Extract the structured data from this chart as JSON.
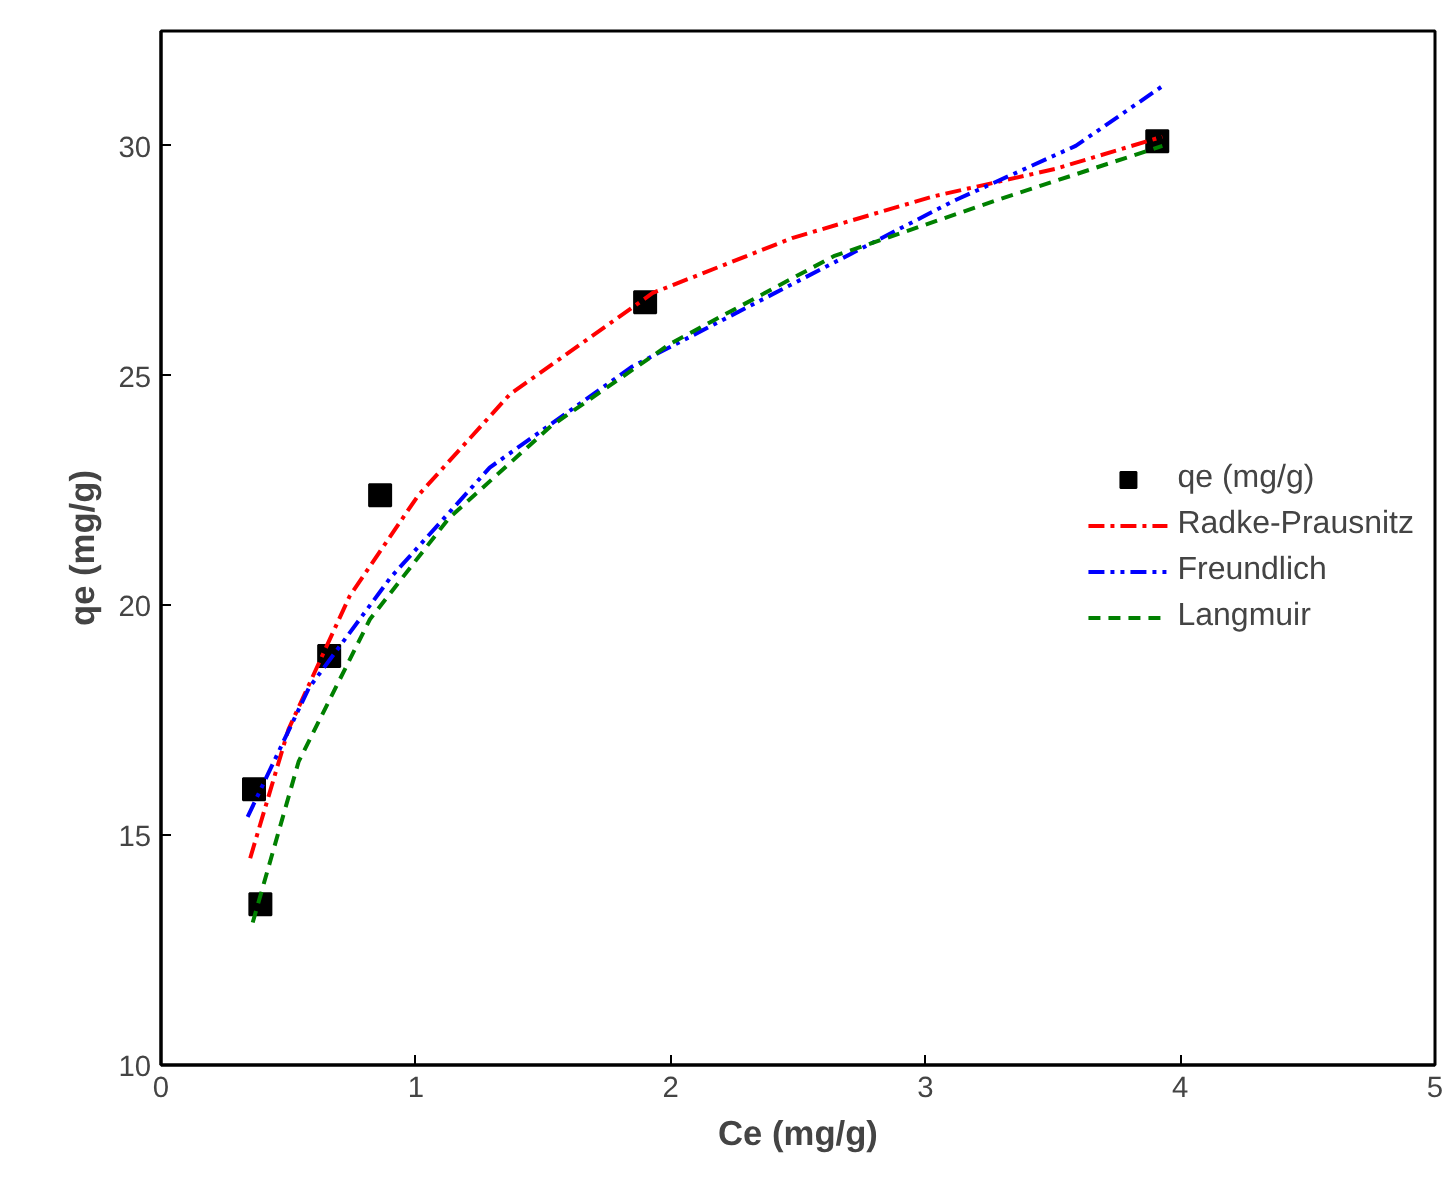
{
  "chart_data": {
    "type": "scatter",
    "xlabel": "Ce (mg/g)",
    "ylabel": "qe (mg/g)",
    "xlim": [
      0,
      5
    ],
    "ylim": [
      10,
      32.5
    ],
    "xticks": [
      0,
      1,
      2,
      3,
      4,
      5
    ],
    "yticks": [
      10,
      15,
      20,
      25,
      30
    ],
    "grid": false,
    "legend": "right",
    "series": [
      {
        "name": "qe (mg/g)",
        "marker": "square",
        "color": "#000000",
        "x": [
          0.365,
          0.39,
          0.66,
          0.86,
          1.9,
          3.91
        ],
        "values": [
          16.0,
          13.5,
          18.9,
          22.4,
          26.6,
          30.1
        ]
      },
      {
        "name": "Radke-Prausnitz",
        "type": "line",
        "line_style": "dashdot",
        "marker": "none",
        "color": "#ff0000",
        "x": [
          0.35,
          0.5,
          0.74,
          1.01,
          1.37,
          1.93,
          2.48,
          3.03,
          3.51,
          3.93
        ],
        "values": [
          14.5,
          17.3,
          20.2,
          22.4,
          24.6,
          26.8,
          28.0,
          28.9,
          29.5,
          30.2
        ]
      },
      {
        "name": "Freundlich",
        "type": "line",
        "line_style": "dashdotdot",
        "marker": "none",
        "color": "#0000ff",
        "x": [
          0.34,
          0.58,
          0.9,
          1.29,
          1.85,
          2.48,
          3.11,
          3.59,
          3.93
        ],
        "values": [
          15.4,
          18.2,
          20.6,
          23.0,
          25.2,
          27.0,
          28.8,
          30.0,
          31.3
        ]
      },
      {
        "name": "Langmuir",
        "type": "line",
        "line_style": "dashed",
        "marker": "none",
        "color": "#008000",
        "x": [
          0.36,
          0.54,
          0.82,
          1.13,
          1.53,
          2.0,
          2.64,
          3.27,
          3.93
        ],
        "values": [
          13.1,
          16.6,
          19.7,
          21.9,
          23.9,
          25.7,
          27.6,
          28.8,
          30.0
        ]
      }
    ]
  }
}
